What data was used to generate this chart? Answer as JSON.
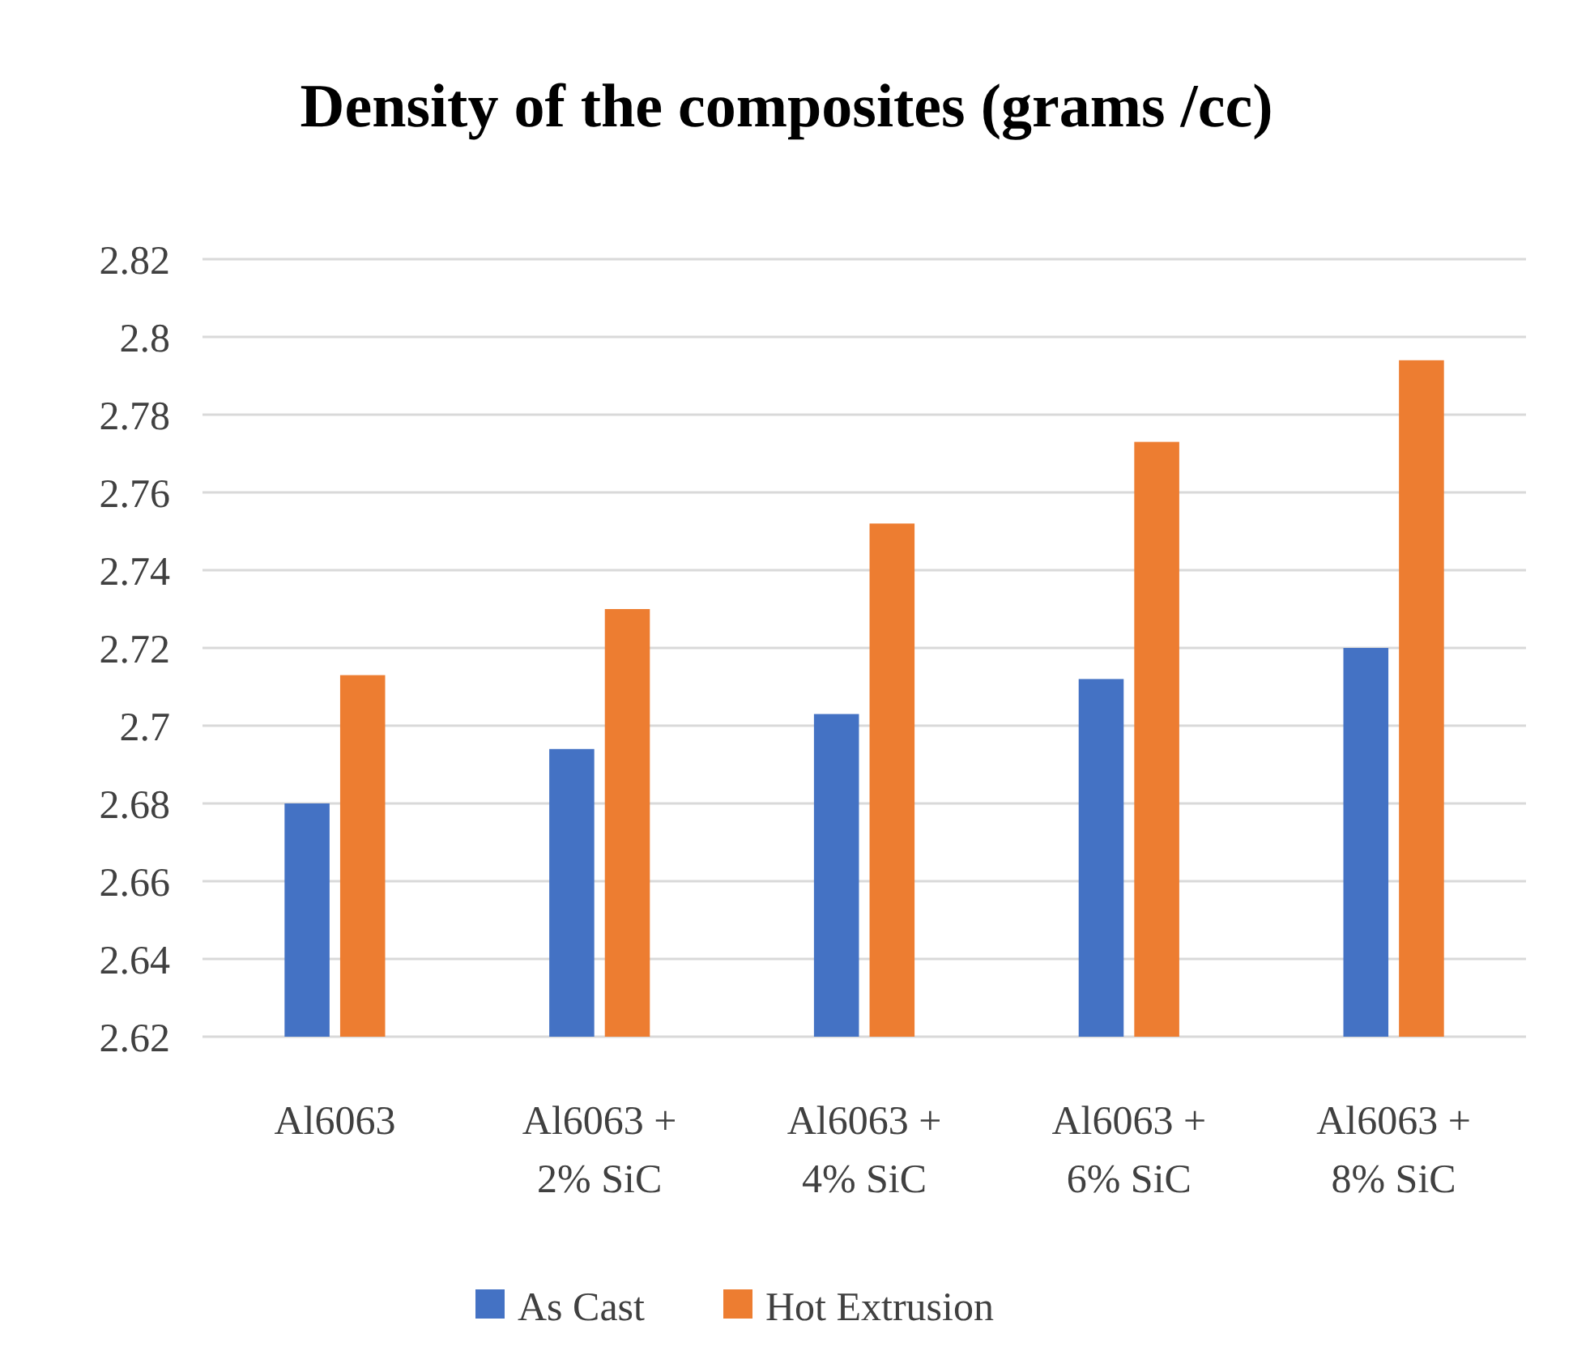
{
  "chart_data": {
    "type": "bar",
    "title": "Density of the composites (grams /cc)",
    "categories": [
      "Al6063",
      "Al6063 + 2% SiC",
      "Al6063 + 4% SiC",
      "Al6063 + 6% SiC",
      "Al6063 + 8% SiC"
    ],
    "series": [
      {
        "name": "As Cast",
        "color": "#4472c4",
        "values": [
          2.68,
          2.694,
          2.703,
          2.712,
          2.72
        ]
      },
      {
        "name": "Hot Extrusion",
        "color": "#ed7d31",
        "values": [
          2.713,
          2.73,
          2.752,
          2.773,
          2.794
        ]
      }
    ],
    "ylim": [
      2.62,
      2.82
    ],
    "yticks": [
      2.62,
      2.64,
      2.66,
      2.68,
      2.7,
      2.72,
      2.74,
      2.76,
      2.78,
      2.8,
      2.82
    ],
    "grid": "y",
    "legend": "bottom"
  }
}
